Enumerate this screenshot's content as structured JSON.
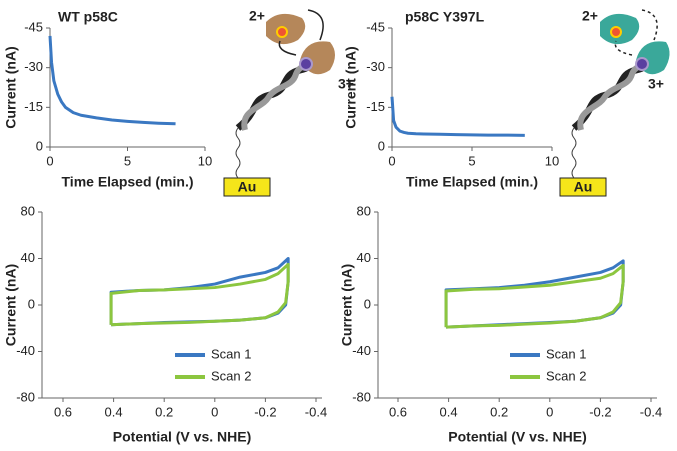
{
  "chart_data": [
    {
      "type": "line",
      "title": "WT p58C",
      "x_label": "Time Elapsed (min.)",
      "y_label": "Current (nA)",
      "xlim": [
        0,
        10
      ],
      "xticks": [
        0,
        5,
        10
      ],
      "ylim": [
        0,
        -45
      ],
      "yticks": [
        -45,
        -30,
        -15,
        0
      ],
      "series": [
        {
          "color": "#3a78c2",
          "x": [
            0,
            0.1,
            0.25,
            0.5,
            0.75,
            1,
            1.5,
            2,
            3,
            4,
            5,
            6,
            7,
            8.1
          ],
          "values": [
            -42,
            -32,
            -25,
            -20,
            -17,
            -15,
            -13,
            -12,
            -11,
            -10.2,
            -9.7,
            -9.3,
            -9,
            -8.8
          ]
        }
      ]
    },
    {
      "type": "line",
      "title": "p58C Y397L",
      "x_label": "Time Elapsed (min.)",
      "y_label": "Current (nA)",
      "xlim": [
        0,
        10
      ],
      "xticks": [
        0,
        5,
        10
      ],
      "ylim": [
        0,
        -45
      ],
      "yticks": [
        -45,
        -30,
        -15,
        0
      ],
      "series": [
        {
          "color": "#3a78c2",
          "x": [
            0,
            0.1,
            0.25,
            0.5,
            0.75,
            1,
            1.5,
            2,
            3,
            4,
            5,
            6,
            7,
            8.3
          ],
          "values": [
            -19,
            -10,
            -7.5,
            -6,
            -5.5,
            -5.2,
            -5,
            -4.9,
            -4.8,
            -4.7,
            -4.6,
            -4.5,
            -4.5,
            -4.4
          ]
        }
      ]
    },
    {
      "type": "line",
      "x_label": "Potential (V vs. NHE)",
      "y_label": "Current (nA)",
      "xlim": [
        0.6,
        -0.4
      ],
      "xticks": [
        0.6,
        0.4,
        0.2,
        0,
        -0.2,
        -0.4
      ],
      "ylim": [
        -80,
        80
      ],
      "yticks": [
        -80,
        -40,
        0,
        40,
        80
      ],
      "legend": "lower center",
      "series": [
        {
          "name": "Scan 1",
          "color": "#3a78c2",
          "x": [
            0.41,
            0.3,
            0.2,
            0.1,
            0,
            -0.1,
            -0.2,
            -0.25,
            -0.28,
            -0.29,
            -0.29,
            -0.25,
            -0.2,
            -0.1,
            0,
            0.1,
            0.2,
            0.3,
            0.41,
            0.41
          ],
          "values": [
            -17,
            -16,
            -15,
            -14.5,
            -14,
            -13,
            -11,
            -7,
            0,
            20,
            40,
            32,
            28,
            24,
            18,
            15,
            13,
            12.5,
            11,
            -17
          ]
        },
        {
          "name": "Scan 2",
          "color": "#8cc63f",
          "x": [
            0.41,
            0.3,
            0.2,
            0.1,
            0,
            -0.1,
            -0.2,
            -0.25,
            -0.28,
            -0.29,
            -0.29,
            -0.25,
            -0.2,
            -0.1,
            0,
            0.1,
            0.2,
            0.3,
            0.41,
            0.41
          ],
          "values": [
            -17,
            -16,
            -15.5,
            -15,
            -14,
            -13,
            -11,
            -6,
            2,
            20,
            35,
            27,
            22,
            18,
            15,
            14,
            13,
            12.5,
            10,
            -17
          ]
        }
      ]
    },
    {
      "type": "line",
      "x_label": "Potential (V vs. NHE)",
      "y_label": "Current (nA)",
      "xlim": [
        0.6,
        -0.4
      ],
      "xticks": [
        0.6,
        0.4,
        0.2,
        0,
        -0.2,
        -0.4
      ],
      "ylim": [
        -80,
        80
      ],
      "yticks": [
        -80,
        -40,
        0,
        40,
        80
      ],
      "legend": "lower center",
      "series": [
        {
          "name": "Scan 1",
          "color": "#3a78c2",
          "x": [
            0.41,
            0.3,
            0.2,
            0.1,
            0,
            -0.1,
            -0.2,
            -0.25,
            -0.28,
            -0.29,
            -0.29,
            -0.25,
            -0.2,
            -0.1,
            0,
            0.1,
            0.2,
            0.3,
            0.41,
            0.41
          ],
          "values": [
            -19,
            -18,
            -17,
            -16,
            -15,
            -14,
            -11,
            -7,
            0,
            20,
            38,
            32,
            28,
            24,
            20,
            17,
            15,
            14,
            13,
            -19
          ]
        },
        {
          "name": "Scan 2",
          "color": "#8cc63f",
          "x": [
            0.41,
            0.3,
            0.2,
            0.1,
            0,
            -0.1,
            -0.2,
            -0.25,
            -0.28,
            -0.29,
            -0.29,
            -0.25,
            -0.2,
            -0.1,
            0,
            0.1,
            0.2,
            0.3,
            0.41,
            0.41
          ],
          "values": [
            -19,
            -18,
            -17.5,
            -16.5,
            -15.5,
            -14,
            -11,
            -6,
            2,
            20,
            34,
            27,
            23,
            20,
            17,
            15.5,
            14,
            13.5,
            12,
            -19
          ]
        }
      ]
    }
  ],
  "diagrams": [
    {
      "charge_before": "2+",
      "charge_after": "3+",
      "electrode": "Au"
    },
    {
      "charge_before": "2+",
      "charge_after": "3+",
      "electrode": "Au"
    }
  ]
}
